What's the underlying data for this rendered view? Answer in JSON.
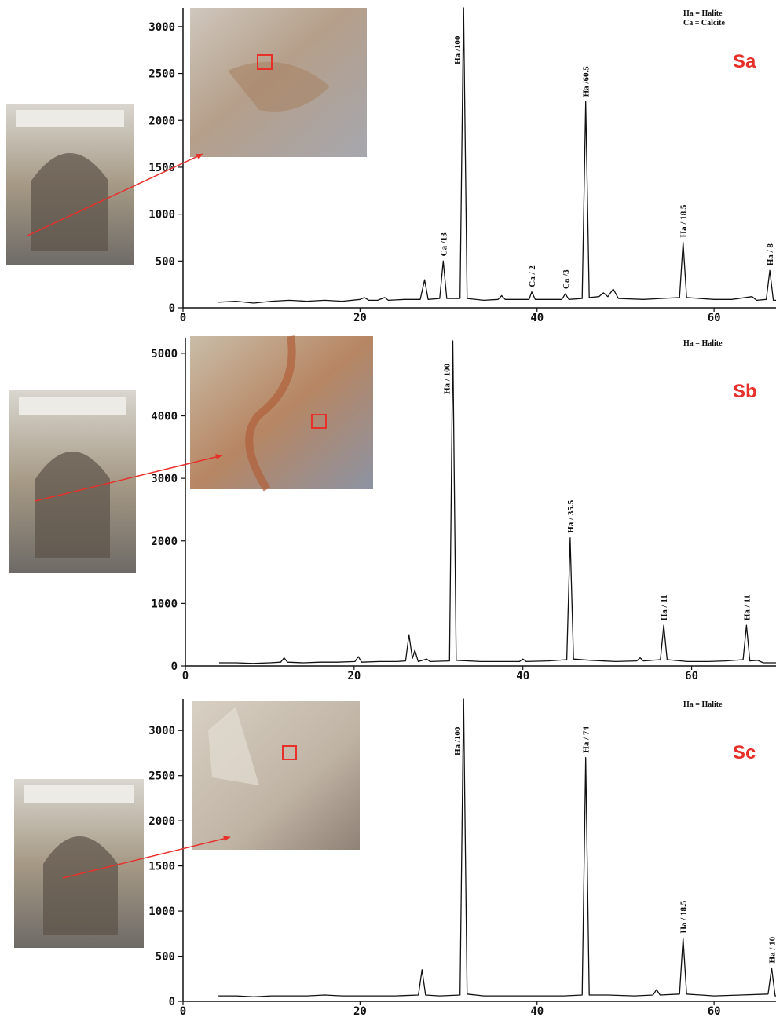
{
  "chart_data": [
    {
      "type": "line",
      "label": "Sa",
      "legend_text": [
        "Ha = Halite",
        "Ca = Calcite"
      ],
      "color": "#111111",
      "x": [
        4,
        6,
        8,
        10,
        12,
        14,
        16,
        18,
        20,
        20.5,
        21,
        22,
        22.8,
        23.2,
        25,
        26.8,
        27.3,
        27.7,
        29,
        29.4,
        29.8,
        31.3,
        31.7,
        32.1,
        34,
        35.6,
        36,
        36.4,
        38,
        39.1,
        39.4,
        39.8,
        41,
        42.8,
        43.2,
        43.6,
        45.1,
        45.5,
        45.9,
        47,
        47.5,
        48,
        48.6,
        49.2,
        52,
        54,
        56.1,
        56.5,
        56.9,
        60,
        62,
        64.3,
        64.8,
        65.9,
        66.3,
        66.7,
        67
      ],
      "values": [
        60,
        70,
        50,
        70,
        80,
        70,
        80,
        70,
        90,
        110,
        80,
        80,
        110,
        80,
        90,
        90,
        300,
        90,
        100,
        500,
        100,
        100,
        3200,
        100,
        80,
        90,
        130,
        90,
        90,
        90,
        170,
        90,
        90,
        90,
        150,
        90,
        100,
        2200,
        110,
        120,
        160,
        120,
        200,
        100,
        90,
        100,
        110,
        700,
        110,
        90,
        90,
        120,
        80,
        90,
        400,
        80,
        80
      ],
      "annotations": [
        {
          "text": "Ca /13",
          "x": 29.4
        },
        {
          "text": "Ha /100",
          "x": 31.7
        },
        {
          "text": "Ca / 2",
          "x": 39.4
        },
        {
          "text": "Ca /3",
          "x": 43.2
        },
        {
          "text": "Ha /60.5",
          "x": 45.5
        },
        {
          "text": "Ha / 18.5",
          "x": 56.5
        },
        {
          "text": "Ha / 8",
          "x": 66.3
        }
      ],
      "xlim": [
        0,
        67
      ],
      "ylim": [
        0,
        3200
      ],
      "xticks": [
        0,
        20,
        40,
        60
      ],
      "yticks": [
        0,
        500,
        1000,
        1500,
        2000,
        2500,
        3000
      ]
    },
    {
      "type": "line",
      "label": "Sb",
      "legend_text": [
        "Ha = Halite"
      ],
      "color": "#111111",
      "x": [
        4,
        6,
        8,
        10,
        11.3,
        11.7,
        12.1,
        14,
        16,
        18,
        20.1,
        20.5,
        20.9,
        23,
        25,
        26.1,
        26.5,
        26.9,
        27.2,
        27.6,
        28.6,
        29,
        31.3,
        31.7,
        32.1,
        35,
        38,
        39.6,
        40,
        40.4,
        43,
        45.2,
        45.6,
        46,
        48,
        51,
        53.5,
        53.9,
        54.3,
        56.3,
        56.7,
        57.1,
        59.5,
        62,
        64,
        66.1,
        66.5,
        66.9,
        67.8,
        68.5,
        70
      ],
      "values": [
        50,
        50,
        40,
        50,
        60,
        130,
        60,
        50,
        60,
        60,
        70,
        150,
        60,
        70,
        70,
        80,
        500,
        120,
        250,
        70,
        110,
        70,
        80,
        5200,
        90,
        70,
        70,
        70,
        110,
        70,
        80,
        100,
        2050,
        110,
        90,
        70,
        80,
        130,
        80,
        100,
        650,
        100,
        70,
        70,
        80,
        100,
        650,
        80,
        90,
        50,
        50
      ],
      "annotations": [
        {
          "text": "Ha / 100",
          "x": 31.7
        },
        {
          "text": "Ha / 35.5",
          "x": 45.6
        },
        {
          "text": "Ha / 11",
          "x": 56.7
        },
        {
          "text": "Ha / 11",
          "x": 66.5
        }
      ],
      "xlim": [
        0,
        70
      ],
      "ylim": [
        0,
        5250
      ],
      "xticks": [
        0,
        20,
        40,
        60
      ],
      "yticks": [
        0,
        1000,
        2000,
        3000,
        4000,
        5000
      ]
    },
    {
      "type": "line",
      "label": "Sc",
      "legend_text": [
        "Ha = Halite"
      ],
      "color": "#111111",
      "x": [
        4,
        6,
        8,
        10,
        12,
        14,
        16,
        18,
        20,
        22,
        24,
        26.6,
        27,
        27.4,
        29,
        31.3,
        31.7,
        32.1,
        34,
        37,
        40,
        43,
        45.1,
        45.5,
        45.9,
        48,
        51,
        53.1,
        53.5,
        53.9,
        56.1,
        56.5,
        56.9,
        60,
        63,
        66.1,
        66.5,
        66.9,
        67
      ],
      "values": [
        60,
        60,
        50,
        60,
        60,
        60,
        70,
        60,
        60,
        60,
        60,
        70,
        350,
        70,
        60,
        70,
        3350,
        80,
        60,
        60,
        60,
        60,
        70,
        2700,
        70,
        70,
        60,
        70,
        130,
        70,
        80,
        700,
        80,
        60,
        70,
        80,
        370,
        60,
        60
      ],
      "annotations": [
        {
          "text": "Ha /100",
          "x": 31.7
        },
        {
          "text": "Ha / 74",
          "x": 45.5
        },
        {
          "text": "Ha / 18.5",
          "x": 56.5
        },
        {
          "text": "Ha / 10",
          "x": 66.5
        }
      ],
      "xlim": [
        0,
        67
      ],
      "ylim": [
        0,
        3350
      ],
      "xticks": [
        0,
        20,
        40,
        60
      ],
      "yticks": [
        0,
        500,
        1000,
        1500,
        2000,
        2500,
        3000
      ]
    }
  ]
}
